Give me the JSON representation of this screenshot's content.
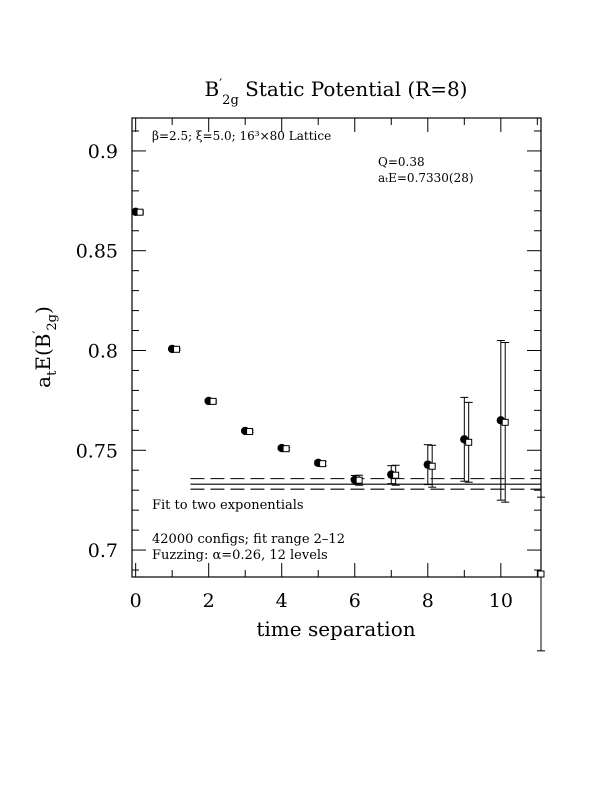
{
  "chart_data": {
    "type": "scatter",
    "title_main": "B",
    "title_sub": "2g",
    "title_rest": " Static Potential (R=8)",
    "xlabel": "time separation",
    "ylabel_main": "a",
    "ylabel_sub": "t",
    "ylabel_rest": "E(B",
    "ylabel_sub2": "2g",
    "ylabel_close": ")",
    "xlim": [
      -0.1,
      11.1
    ],
    "ylim": [
      0.6865,
      0.9165
    ],
    "xticks": [
      0,
      2,
      4,
      6,
      8,
      10
    ],
    "xtick_labels": [
      "0",
      "2",
      "4",
      "6",
      "8",
      "10"
    ],
    "yticks": [
      0.7,
      0.75,
      0.8,
      0.85,
      0.9
    ],
    "ytick_labels": [
      "0.7",
      "0.75",
      "0.8",
      "0.85",
      "0.9"
    ],
    "header_text": "β=2.5; ξ=5.0; 16³×80 Lattice",
    "fit_q": "Q=0.38",
    "fit_energy": "aₜE=0.7330(28)",
    "fit_label": "Fit to two exponentials",
    "config_text": "42000 configs; fit range 2–12",
    "fuzzing_text": "Fuzzing: α=0.26, 12 levels",
    "fit": {
      "x_range": [
        1.5,
        11.1
      ],
      "center": 0.733,
      "band": [
        0.7305,
        0.7358
      ]
    },
    "series": [
      {
        "marker": "filled-circle",
        "points": [
          {
            "x": 0,
            "y": 0.8695,
            "err": 0.0006
          },
          {
            "x": 1,
            "y": 0.8008,
            "err": 0.0005
          },
          {
            "x": 2,
            "y": 0.7747,
            "err": 0.0006
          },
          {
            "x": 3,
            "y": 0.7597,
            "err": 0.0006
          },
          {
            "x": 4,
            "y": 0.7511,
            "err": 0.0007
          },
          {
            "x": 5,
            "y": 0.7437,
            "err": 0.001
          },
          {
            "x": 6,
            "y": 0.7352,
            "err": 0.0022
          },
          {
            "x": 7,
            "y": 0.7378,
            "err": 0.0045
          },
          {
            "x": 8,
            "y": 0.7428,
            "err": 0.01
          },
          {
            "x": 9,
            "y": 0.7555,
            "err": 0.021
          },
          {
            "x": 10,
            "y": 0.765,
            "err": 0.04
          }
        ]
      },
      {
        "marker": "open-square",
        "points": [
          {
            "x": 0.12,
            "y": 0.8693,
            "err": 0.0006
          },
          {
            "x": 1.12,
            "y": 0.8006,
            "err": 0.0005
          },
          {
            "x": 2.12,
            "y": 0.7745,
            "err": 0.0006
          },
          {
            "x": 3.12,
            "y": 0.7594,
            "err": 0.0006
          },
          {
            "x": 4.12,
            "y": 0.7508,
            "err": 0.0007
          },
          {
            "x": 5.12,
            "y": 0.7433,
            "err": 0.001
          },
          {
            "x": 6.12,
            "y": 0.735,
            "err": 0.0025
          },
          {
            "x": 7.12,
            "y": 0.7375,
            "err": 0.005
          },
          {
            "x": 8.12,
            "y": 0.742,
            "err": 0.0105
          },
          {
            "x": 9.12,
            "y": 0.754,
            "err": 0.02
          },
          {
            "x": 10.12,
            "y": 0.764,
            "err": 0.04
          },
          {
            "x": 11.1,
            "y": 0.688,
            "err": 0.0385
          }
        ]
      }
    ]
  }
}
